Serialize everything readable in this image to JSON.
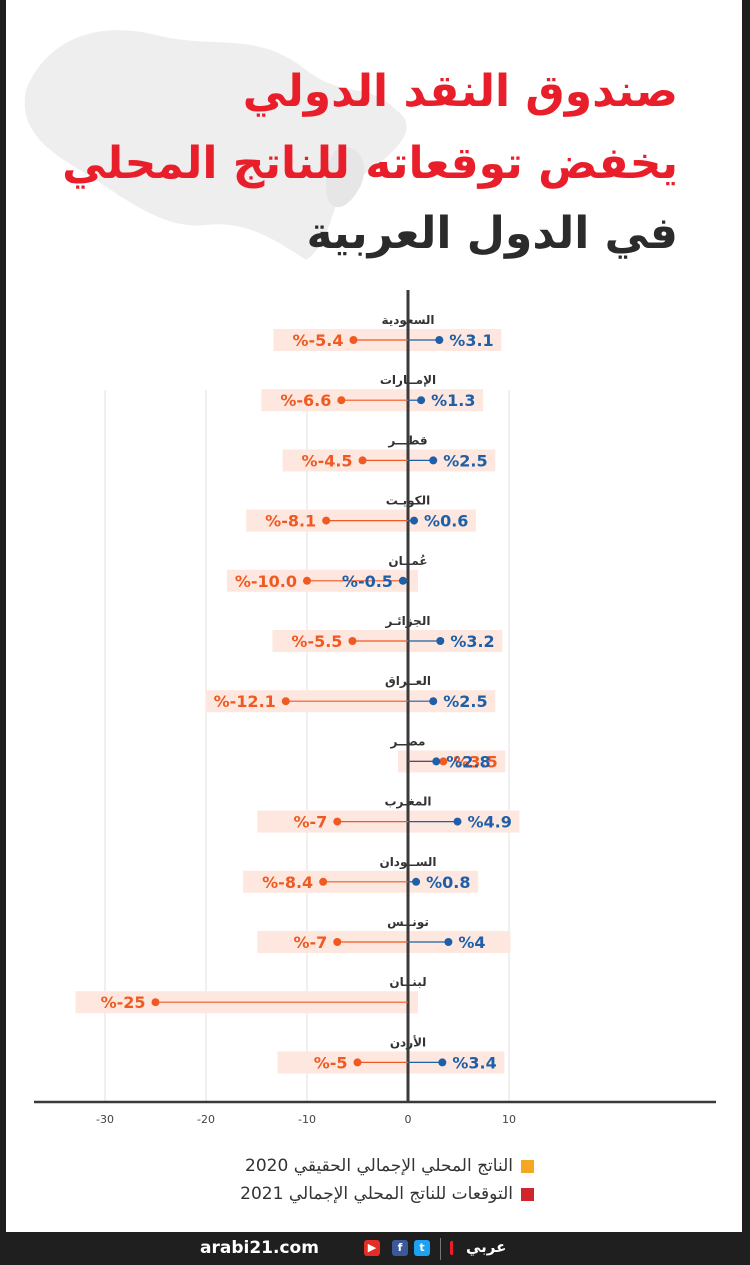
{
  "title": {
    "line1": "صندوق النقد الدولي",
    "line2": "يخفض توقعاته للناتج المحلي",
    "line3": "في الدول العربية"
  },
  "colors": {
    "actual_2020": "#1f5fa8",
    "forecast_2021": "#f05a22",
    "title_red": "#e81f2b",
    "label_bg": "#fde7df",
    "legend_swatch_2020": "#f5a623",
    "legend_swatch_2021": "#d0262b"
  },
  "chart_data": {
    "type": "dot-range",
    "xlim": [
      -35,
      15
    ],
    "x_ticks": [
      -30,
      -20,
      -10,
      0,
      10
    ],
    "grid": true,
    "rows": [
      {
        "country": "السعودية",
        "actual_2020": 3.1,
        "actual_label": "%3.1",
        "forecast_2021": -5.4,
        "forecast_label": "%-5.4"
      },
      {
        "country": "الإمــارات",
        "actual_2020": 1.3,
        "actual_label": "%1.3",
        "forecast_2021": -6.6,
        "forecast_label": "%-6.6"
      },
      {
        "country": "قطـــر",
        "actual_2020": 2.5,
        "actual_label": "%2.5",
        "forecast_2021": -4.5,
        "forecast_label": "%-4.5"
      },
      {
        "country": "الكويـت",
        "actual_2020": 0.6,
        "actual_label": "%0.6",
        "forecast_2021": -8.1,
        "forecast_label": "%-8.1"
      },
      {
        "country": "عُمــان",
        "actual_2020": -0.5,
        "actual_label": "%-0.5",
        "forecast_2021": -10.0,
        "forecast_label": "%-10.0"
      },
      {
        "country": "الجزائـر",
        "actual_2020": 3.2,
        "actual_label": "%3.2",
        "forecast_2021": -5.5,
        "forecast_label": "%-5.5"
      },
      {
        "country": "العــراق",
        "actual_2020": 2.5,
        "actual_label": "%2.5",
        "forecast_2021": -12.1,
        "forecast_label": "%-12.1"
      },
      {
        "country": "مصــر",
        "actual_2020": 2.8,
        "actual_label": "%2.8",
        "forecast_2021": 3.5,
        "forecast_label": "%3.5"
      },
      {
        "country": "المغـرب",
        "actual_2020": 4.9,
        "actual_label": "%4.9",
        "forecast_2021": -7,
        "forecast_label": "%-7"
      },
      {
        "country": "الســودان",
        "actual_2020": 0.8,
        "actual_label": "%0.8",
        "forecast_2021": -8.4,
        "forecast_label": "%-8.4"
      },
      {
        "country": "تونــس",
        "actual_2020": 4,
        "actual_label": "%4",
        "forecast_2021": -7,
        "forecast_label": "%-7"
      },
      {
        "country": "لبنــان",
        "actual_2020": null,
        "actual_label": "",
        "forecast_2021": -25,
        "forecast_label": "%-25"
      },
      {
        "country": "الأردن",
        "actual_2020": 3.4,
        "actual_label": "%3.4",
        "forecast_2021": -5,
        "forecast_label": "%-5"
      }
    ],
    "legend": [
      {
        "label": "الناتج المحلي الإجمالي الحقيقي  2020",
        "series": "actual_2020"
      },
      {
        "label": "التوقعات للناتج المحلي الإجمالي 2021",
        "series": "forecast_2021"
      }
    ]
  },
  "footer": {
    "site": "arabi21.com",
    "logo": "عربي",
    "icons": [
      "youtube-icon",
      "facebook-icon",
      "twitter-icon"
    ],
    "fb_glyph": "f",
    "tw_glyph": "t"
  }
}
